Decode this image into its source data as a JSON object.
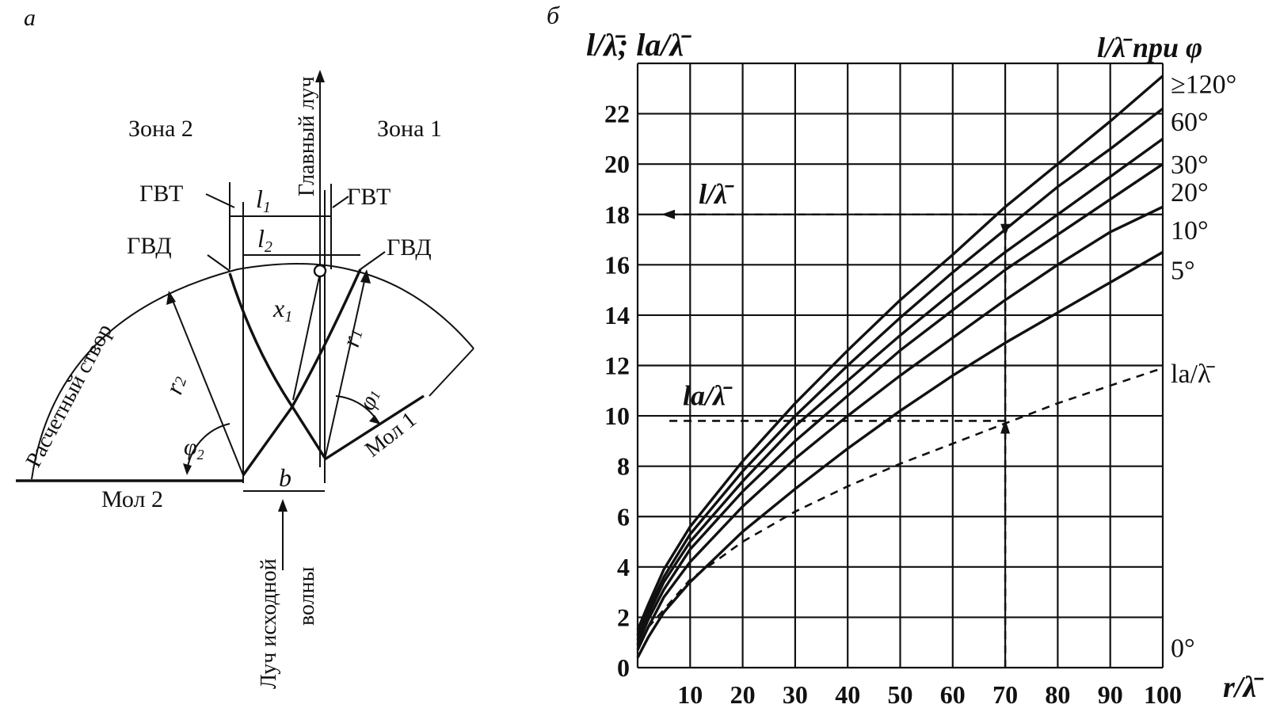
{
  "panel_a": {
    "letter": "а",
    "zone2": "Зона 2",
    "zone1": "Зона 1",
    "main_ray": "Главный луч",
    "gvt_left": "ГВТ",
    "gvt_right": "ГВТ",
    "gvd_left": "ГВД",
    "gvd_right": "ГВД",
    "l1": "l",
    "l1_sub": "1",
    "l2": "l",
    "l2_sub": "2",
    "x1": "x",
    "x1_sub": "1",
    "r1": "r",
    "r1_sub": "1",
    "r2": "r",
    "r2_sub": "2",
    "phi1": "φ",
    "phi1_sub": "1",
    "phi2": "φ",
    "phi2_sub": "2",
    "b": "b",
    "design_line": "Расчетный створ",
    "mole1": "Мол 1",
    "mole2": "Мол 2",
    "incident_ray_1": "Луч исходной",
    "incident_ray_2": "волны"
  },
  "panel_b": {
    "letter": "б",
    "ylabel": "l/λ̄; la/λ̄",
    "xlabel": "r/λ̄",
    "right_header": "l/λ̄ при φ",
    "annot_l": "l/λ̄",
    "annot_la": "la/λ̄",
    "curve_labels": [
      "≥120°",
      "60°",
      "30°",
      "20°",
      "10°",
      "5°",
      "la/λ̄",
      "0°"
    ]
  },
  "chart_data": {
    "type": "line",
    "xlabel": "r/λ̄",
    "ylabel": "l/λ̄; la/λ̄",
    "xlim": [
      0,
      100
    ],
    "ylim": [
      0,
      24
    ],
    "xticks": [
      10,
      20,
      30,
      40,
      50,
      60,
      70,
      80,
      90,
      100
    ],
    "yticks": [
      0,
      2,
      4,
      6,
      8,
      10,
      12,
      14,
      16,
      18,
      20,
      22
    ],
    "grid": true,
    "x": [
      0,
      2,
      5,
      10,
      20,
      30,
      40,
      50,
      60,
      70,
      80,
      90,
      100
    ],
    "series": [
      {
        "name": "≥120°",
        "style": "solid",
        "values": [
          1.5,
          2.5,
          3.9,
          5.6,
          8.2,
          10.5,
          12.6,
          14.6,
          16.4,
          18.3,
          20.0,
          21.7,
          23.5
        ]
      },
      {
        "name": "60°",
        "style": "solid",
        "values": [
          1.3,
          2.3,
          3.6,
          5.3,
          7.8,
          10.0,
          12.0,
          13.9,
          15.7,
          17.4,
          19.1,
          20.6,
          22.2
        ]
      },
      {
        "name": "30°",
        "style": "solid",
        "values": [
          1.1,
          2.1,
          3.4,
          5.0,
          7.4,
          9.6,
          11.4,
          13.2,
          14.9,
          16.5,
          18.0,
          19.5,
          21.0
        ]
      },
      {
        "name": "20°",
        "style": "solid",
        "values": [
          0.9,
          1.9,
          3.1,
          4.7,
          7.0,
          9.0,
          10.8,
          12.6,
          14.2,
          15.8,
          17.2,
          18.6,
          20.0
        ]
      },
      {
        "name": "10°",
        "style": "solid",
        "values": [
          0.7,
          1.6,
          2.8,
          4.2,
          6.4,
          8.3,
          10.0,
          11.6,
          13.1,
          14.6,
          16.0,
          17.3,
          18.3
        ]
      },
      {
        "name": "5°",
        "style": "solid",
        "values": [
          0.4,
          1.2,
          2.2,
          3.4,
          5.4,
          7.1,
          8.7,
          10.2,
          11.6,
          12.9,
          14.1,
          15.3,
          16.5
        ]
      },
      {
        "name": "la/λ̄",
        "style": "dashed",
        "values": [
          null,
          1.6,
          2.3,
          3.5,
          5.0,
          6.2,
          7.2,
          8.1,
          8.9,
          9.7,
          10.5,
          11.2,
          11.9
        ]
      }
    ],
    "annotations": [
      {
        "text": "l/λ̄",
        "x": 70,
        "y": 18
      },
      {
        "text": "la/λ̄",
        "x": 70,
        "y": 9.8
      }
    ]
  }
}
